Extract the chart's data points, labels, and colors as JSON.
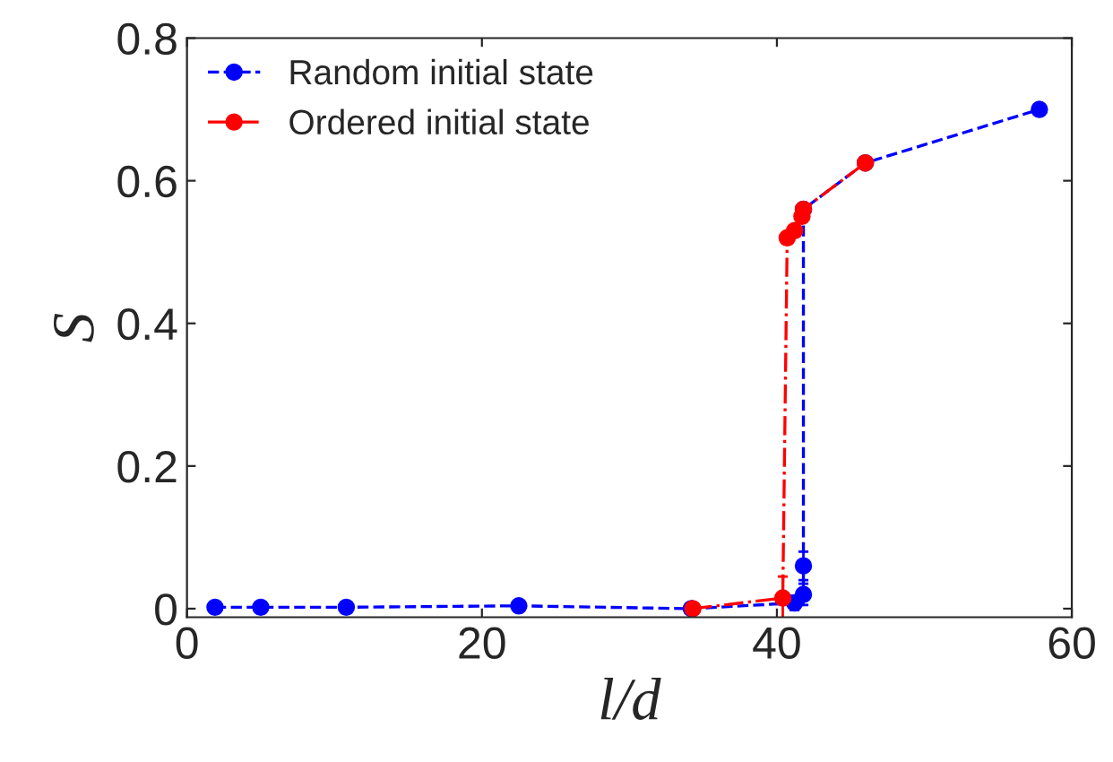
{
  "chart_data": {
    "type": "line",
    "xlabel": "l/d",
    "ylabel": "S",
    "xlim": [
      0,
      60
    ],
    "xticks": [
      0,
      20,
      40,
      60
    ],
    "ylim": [
      -0.012,
      0.8
    ],
    "yticks": [
      0,
      0.2,
      0.4,
      0.6,
      0.8
    ],
    "legend": "top left",
    "marker": "circle",
    "grid": false,
    "series": [
      {
        "name": "Random initial state",
        "color": "#0000ff",
        "line_style": "dashed",
        "x": [
          1.9,
          5,
          10.8,
          22.5,
          34.2,
          41.2,
          41.8,
          41.8,
          41.8,
          46,
          57.8
        ],
        "values": [
          0.002,
          0.002,
          0.002,
          0.004,
          0.0,
          0.008,
          0.02,
          0.06,
          0.56,
          0.625,
          0.7
        ],
        "errors": [
          null,
          null,
          null,
          null,
          null,
          0.01,
          0.015,
          0.02,
          null,
          null,
          null
        ]
      },
      {
        "name": "Ordered initial state",
        "color": "#ff0000",
        "line_style": "dotted",
        "x": [
          34.3,
          40.4,
          40.7,
          41.2,
          41.7,
          41.8,
          46
        ],
        "values": [
          0.0,
          0.015,
          0.52,
          0.53,
          0.55,
          0.56,
          0.625
        ],
        "errors": [
          null,
          0.03,
          null,
          null,
          null,
          null,
          null
        ]
      }
    ]
  }
}
